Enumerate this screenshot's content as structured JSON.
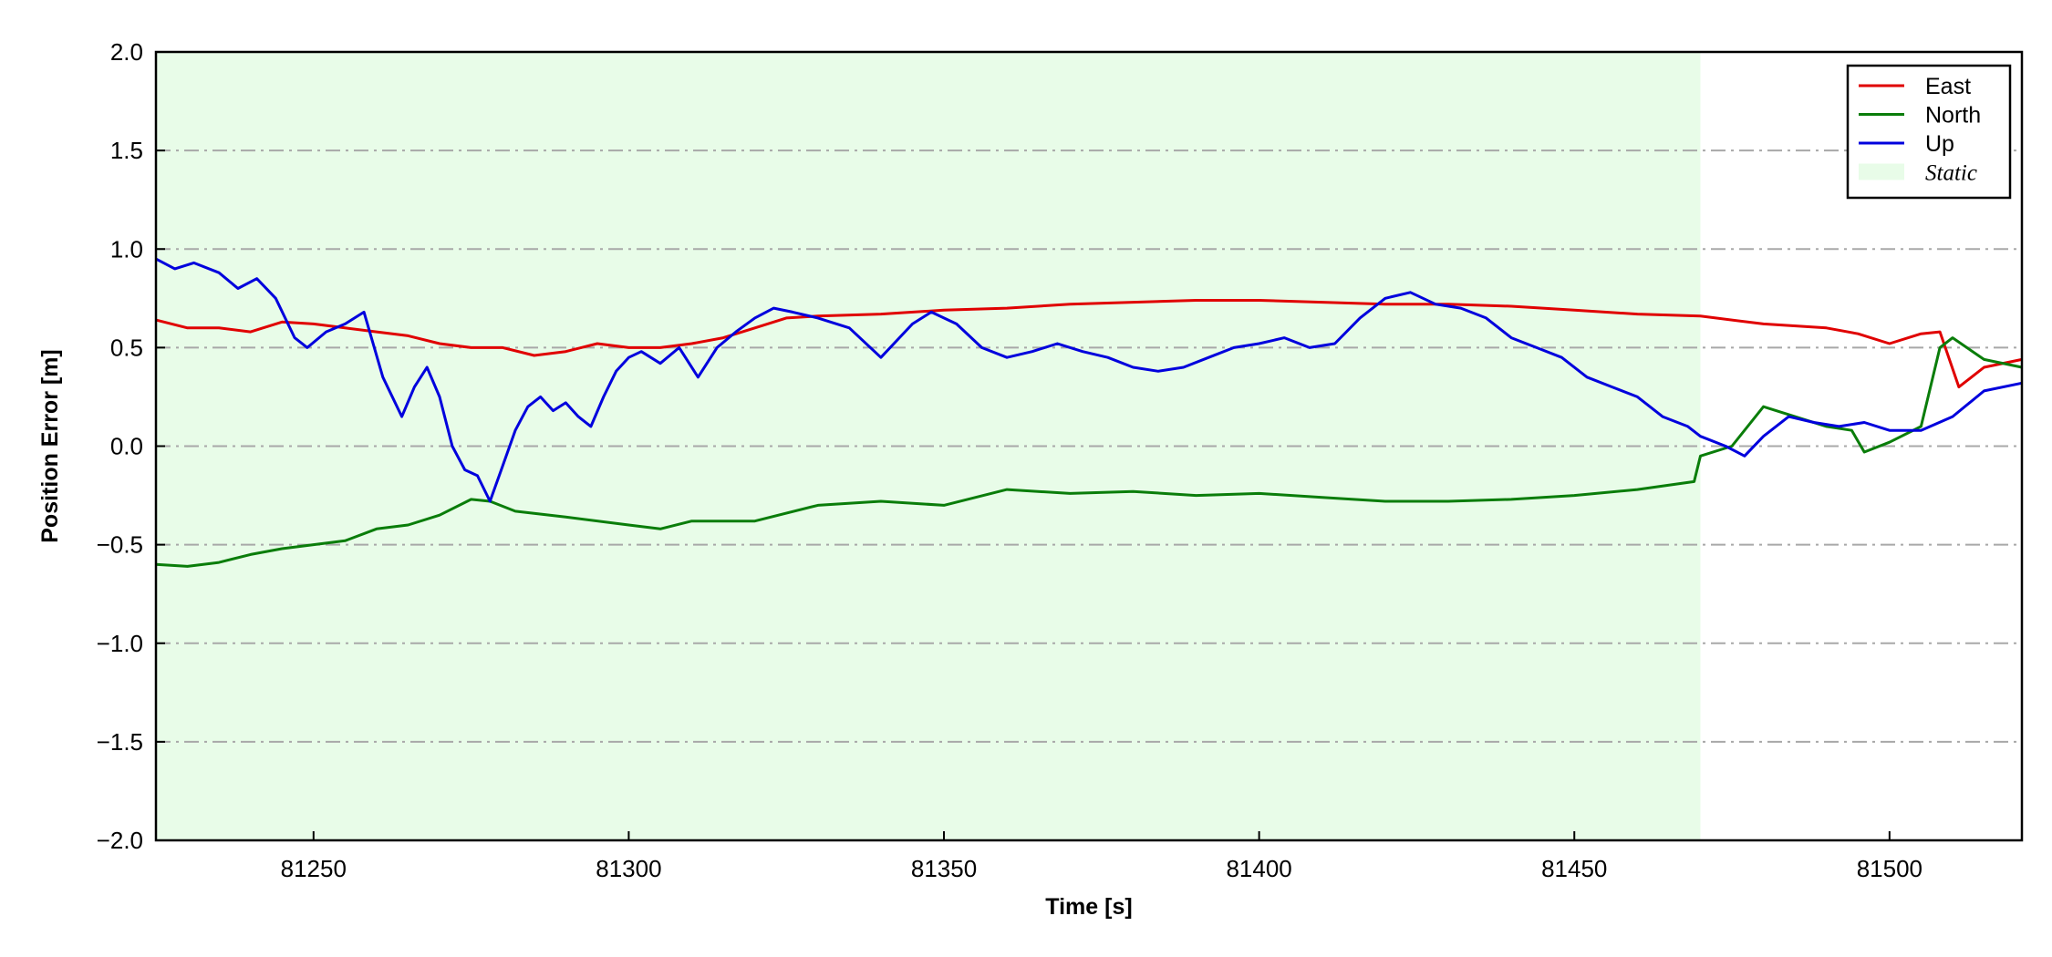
{
  "chart_data": {
    "type": "line",
    "xlabel": "Time [s]",
    "ylabel": "Position Error [m]",
    "xlim": [
      81225,
      81521
    ],
    "ylim": [
      -2.0,
      2.0
    ],
    "xticks": [
      81250,
      81300,
      81350,
      81400,
      81450,
      81500
    ],
    "xtick_labels": [
      "81250",
      "81300",
      "81350",
      "81400",
      "81450",
      "81500"
    ],
    "yticks": [
      -2.0,
      -1.5,
      -1.0,
      -0.5,
      0.0,
      0.5,
      1.0,
      1.5,
      2.0
    ],
    "ytick_labels": [
      "−2.0",
      "−1.5",
      "−1.0",
      "−0.5",
      "0.0",
      "0.5",
      "1.0",
      "1.5",
      "2.0"
    ],
    "grid": "horizontal dash-dot",
    "legend_position": "top-right",
    "static_region": {
      "label": "Static",
      "x_start": 81225,
      "x_end": 81470,
      "color": "#e8fce8"
    },
    "series": [
      {
        "name": "East",
        "color": "#e00000",
        "x": [
          81225,
          81230,
          81235,
          81240,
          81245,
          81250,
          81255,
          81260,
          81265,
          81270,
          81275,
          81280,
          81285,
          81290,
          81295,
          81300,
          81305,
          81310,
          81315,
          81320,
          81325,
          81330,
          81340,
          81350,
          81360,
          81370,
          81380,
          81390,
          81400,
          81410,
          81420,
          81430,
          81440,
          81450,
          81460,
          81470,
          81480,
          81490,
          81495,
          81500,
          81505,
          81508,
          81511,
          81515,
          81521
        ],
        "y": [
          0.64,
          0.6,
          0.6,
          0.58,
          0.63,
          0.62,
          0.6,
          0.58,
          0.56,
          0.52,
          0.5,
          0.5,
          0.46,
          0.48,
          0.52,
          0.5,
          0.5,
          0.52,
          0.55,
          0.6,
          0.65,
          0.66,
          0.67,
          0.69,
          0.7,
          0.72,
          0.73,
          0.74,
          0.74,
          0.73,
          0.72,
          0.72,
          0.71,
          0.69,
          0.67,
          0.66,
          0.62,
          0.6,
          0.57,
          0.52,
          0.57,
          0.58,
          0.3,
          0.4,
          0.44
        ]
      },
      {
        "name": "North",
        "color": "#0a7d0a",
        "x": [
          81225,
          81230,
          81235,
          81240,
          81245,
          81250,
          81255,
          81260,
          81265,
          81270,
          81275,
          81278,
          81282,
          81290,
          81300,
          81305,
          81310,
          81320,
          81330,
          81340,
          81350,
          81360,
          81370,
          81380,
          81390,
          81400,
          81410,
          81420,
          81430,
          81440,
          81450,
          81460,
          81469,
          81470,
          81475,
          81480,
          81485,
          81490,
          81494,
          81496,
          81500,
          81505,
          81508,
          81510,
          81515,
          81521
        ],
        "y": [
          -0.6,
          -0.61,
          -0.59,
          -0.55,
          -0.52,
          -0.5,
          -0.48,
          -0.42,
          -0.4,
          -0.35,
          -0.27,
          -0.28,
          -0.33,
          -0.36,
          -0.4,
          -0.42,
          -0.38,
          -0.38,
          -0.3,
          -0.28,
          -0.3,
          -0.22,
          -0.24,
          -0.23,
          -0.25,
          -0.24,
          -0.26,
          -0.28,
          -0.28,
          -0.27,
          -0.25,
          -0.22,
          -0.18,
          -0.05,
          0.0,
          0.2,
          0.15,
          0.1,
          0.08,
          -0.03,
          0.02,
          0.1,
          0.5,
          0.55,
          0.44,
          0.4
        ]
      },
      {
        "name": "Up",
        "color": "#0000dd",
        "x": [
          81225,
          81228,
          81231,
          81235,
          81238,
          81241,
          81244,
          81247,
          81249,
          81252,
          81255,
          81258,
          81261,
          81264,
          81266,
          81268,
          81270,
          81272,
          81274,
          81276,
          81278,
          81280,
          81282,
          81284,
          81286,
          81288,
          81290,
          81292,
          81294,
          81296,
          81298,
          81300,
          81302,
          81305,
          81308,
          81311,
          81314,
          81317,
          81320,
          81323,
          81326,
          81330,
          81335,
          81340,
          81345,
          81348,
          81352,
          81356,
          81360,
          81364,
          81368,
          81372,
          81376,
          81380,
          81384,
          81388,
          81392,
          81396,
          81400,
          81404,
          81408,
          81412,
          81416,
          81420,
          81424,
          81428,
          81432,
          81436,
          81440,
          81444,
          81448,
          81452,
          81456,
          81460,
          81464,
          81468,
          81470,
          81474,
          81477,
          81480,
          81484,
          81488,
          81492,
          81496,
          81500,
          81505,
          81510,
          81515,
          81521
        ],
        "y": [
          0.95,
          0.9,
          0.93,
          0.88,
          0.8,
          0.85,
          0.75,
          0.55,
          0.5,
          0.58,
          0.62,
          0.68,
          0.35,
          0.15,
          0.3,
          0.4,
          0.25,
          0.0,
          -0.12,
          -0.15,
          -0.28,
          -0.1,
          0.08,
          0.2,
          0.25,
          0.18,
          0.22,
          0.15,
          0.1,
          0.25,
          0.38,
          0.45,
          0.48,
          0.42,
          0.5,
          0.35,
          0.5,
          0.58,
          0.65,
          0.7,
          0.68,
          0.65,
          0.6,
          0.45,
          0.62,
          0.68,
          0.62,
          0.5,
          0.45,
          0.48,
          0.52,
          0.48,
          0.45,
          0.4,
          0.38,
          0.4,
          0.45,
          0.5,
          0.52,
          0.55,
          0.5,
          0.52,
          0.65,
          0.75,
          0.78,
          0.72,
          0.7,
          0.65,
          0.55,
          0.5,
          0.45,
          0.35,
          0.3,
          0.25,
          0.15,
          0.1,
          0.05,
          0.0,
          -0.05,
          0.05,
          0.15,
          0.12,
          0.1,
          0.12,
          0.08,
          0.08,
          0.15,
          0.28,
          0.32
        ]
      }
    ]
  }
}
